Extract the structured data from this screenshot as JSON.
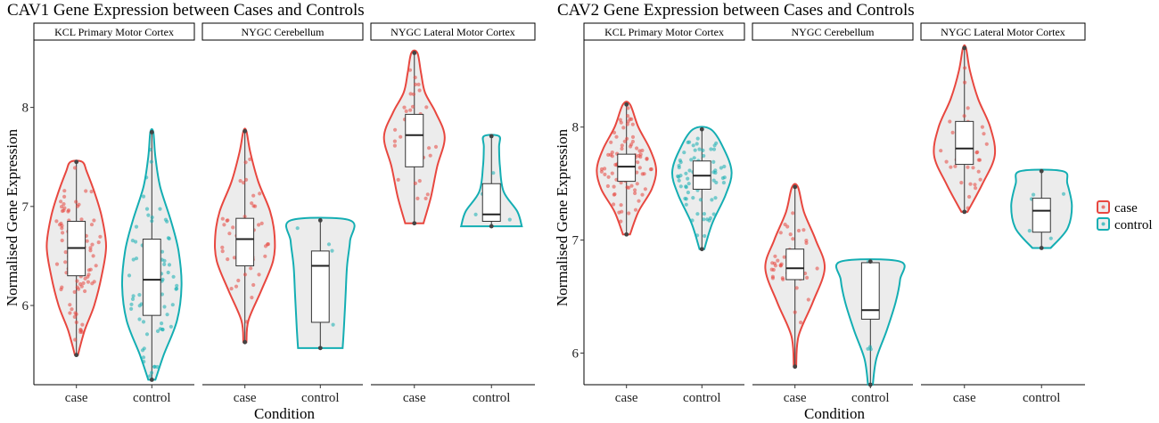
{
  "colors": {
    "case": "#e8473f",
    "control": "#14aeb3",
    "violin_fill": "#ececec",
    "strip_fill": "#ffffff"
  },
  "legend": {
    "entries": [
      {
        "group": "case",
        "label": "case"
      },
      {
        "group": "control",
        "label": "control"
      }
    ]
  },
  "chart_data": [
    {
      "type": "violin",
      "title": "CAV1 Gene Expression between Cases and Controls",
      "xlabel": "Condition",
      "ylabel": "Normalised Gene Expression",
      "ylim": [
        5.2,
        8.68
      ],
      "yticks": [
        6,
        7,
        8
      ],
      "categories": [
        "case",
        "control"
      ],
      "facets": [
        {
          "label": "KCL Primary Motor Cortex",
          "groups": [
            {
              "group": "case",
              "min": 5.5,
              "q1": 6.3,
              "median": 6.58,
              "q3": 6.85,
              "max": 7.45,
              "n": 90,
              "density": [
                [
                  5.5,
                  0.05
                ],
                [
                  5.75,
                  0.28
                ],
                [
                  6.0,
                  0.6
                ],
                [
                  6.3,
                  0.85
                ],
                [
                  6.6,
                  1.0
                ],
                [
                  6.9,
                  0.85
                ],
                [
                  7.15,
                  0.6
                ],
                [
                  7.35,
                  0.35
                ],
                [
                  7.45,
                  0.2
                ]
              ]
            },
            {
              "group": "control",
              "min": 5.25,
              "q1": 5.9,
              "median": 6.26,
              "q3": 6.67,
              "max": 7.75,
              "n": 70,
              "density": [
                [
                  5.25,
                  0.12
                ],
                [
                  5.5,
                  0.4
                ],
                [
                  5.85,
                  0.85
                ],
                [
                  6.2,
                  1.0
                ],
                [
                  6.55,
                  0.9
                ],
                [
                  6.85,
                  0.65
                ],
                [
                  7.2,
                  0.28
                ],
                [
                  7.5,
                  0.12
                ],
                [
                  7.75,
                  0.05
                ]
              ]
            }
          ]
        },
        {
          "label": "NYGC Cerebellum",
          "groups": [
            {
              "group": "case",
              "min": 5.63,
              "q1": 6.4,
              "median": 6.67,
              "q3": 6.88,
              "max": 7.76,
              "n": 45,
              "density": [
                [
                  5.63,
                  0.05
                ],
                [
                  5.85,
                  0.12
                ],
                [
                  6.15,
                  0.55
                ],
                [
                  6.45,
                  0.95
                ],
                [
                  6.7,
                  1.0
                ],
                [
                  6.95,
                  0.85
                ],
                [
                  7.25,
                  0.45
                ],
                [
                  7.55,
                  0.18
                ],
                [
                  7.76,
                  0.05
                ]
              ]
            },
            {
              "group": "control",
              "min": 5.57,
              "q1": 5.83,
              "median": 6.4,
              "q3": 6.55,
              "max": 6.86,
              "n": 5,
              "density": [
                [
                  5.57,
                  0.75
                ],
                [
                  5.8,
                  0.8
                ],
                [
                  6.1,
                  0.85
                ],
                [
                  6.4,
                  0.9
                ],
                [
                  6.65,
                  1.0
                ],
                [
                  6.86,
                  1.0
                ]
              ]
            }
          ]
        },
        {
          "label": "NYGC Lateral Motor Cortex",
          "groups": [
            {
              "group": "case",
              "min": 6.83,
              "q1": 7.4,
              "median": 7.72,
              "q3": 7.93,
              "max": 8.55,
              "n": 35,
              "density": [
                [
                  6.83,
                  0.3
                ],
                [
                  7.1,
                  0.55
                ],
                [
                  7.4,
                  0.75
                ],
                [
                  7.7,
                  1.0
                ],
                [
                  7.95,
                  0.7
                ],
                [
                  8.15,
                  0.35
                ],
                [
                  8.35,
                  0.22
                ],
                [
                  8.55,
                  0.1
                ]
              ]
            },
            {
              "group": "control",
              "min": 6.8,
              "q1": 6.85,
              "median": 6.92,
              "q3": 7.23,
              "max": 7.71,
              "n": 5,
              "density": [
                [
                  6.8,
                  1.0
                ],
                [
                  6.95,
                  0.85
                ],
                [
                  7.15,
                  0.4
                ],
                [
                  7.4,
                  0.28
                ],
                [
                  7.6,
                  0.25
                ],
                [
                  7.71,
                  0.25
                ]
              ]
            }
          ]
        }
      ]
    },
    {
      "type": "violin",
      "title": "CAV2 Gene Expression between Cases and Controls",
      "xlabel": "Condition",
      "ylabel": "Normalised Gene Expression",
      "ylim": [
        5.72,
        8.77
      ],
      "yticks": [
        6,
        7,
        8
      ],
      "categories": [
        "case",
        "control"
      ],
      "facets": [
        {
          "label": "KCL Primary Motor Cortex",
          "groups": [
            {
              "group": "case",
              "min": 7.05,
              "q1": 7.52,
              "median": 7.65,
              "q3": 7.76,
              "max": 8.2,
              "n": 90,
              "density": [
                [
                  7.05,
                  0.12
                ],
                [
                  7.25,
                  0.4
                ],
                [
                  7.45,
                  0.85
                ],
                [
                  7.62,
                  1.0
                ],
                [
                  7.8,
                  0.8
                ],
                [
                  8.0,
                  0.4
                ],
                [
                  8.2,
                  0.12
                ]
              ]
            },
            {
              "group": "control",
              "min": 6.92,
              "q1": 7.45,
              "median": 7.57,
              "q3": 7.7,
              "max": 7.98,
              "n": 70,
              "density": [
                [
                  6.92,
                  0.08
                ],
                [
                  7.15,
                  0.35
                ],
                [
                  7.4,
                  0.8
                ],
                [
                  7.6,
                  1.0
                ],
                [
                  7.8,
                  0.75
                ],
                [
                  7.98,
                  0.3
                ]
              ]
            }
          ]
        },
        {
          "label": "NYGC Cerebellum",
          "groups": [
            {
              "group": "case",
              "min": 5.88,
              "q1": 6.65,
              "median": 6.75,
              "q3": 6.92,
              "max": 7.47,
              "n": 45,
              "density": [
                [
                  5.88,
                  0.04
                ],
                [
                  6.15,
                  0.12
                ],
                [
                  6.45,
                  0.6
                ],
                [
                  6.75,
                  1.0
                ],
                [
                  7.0,
                  0.7
                ],
                [
                  7.25,
                  0.3
                ],
                [
                  7.47,
                  0.1
                ]
              ]
            },
            {
              "group": "control",
              "min": 5.72,
              "q1": 6.3,
              "median": 6.38,
              "q3": 6.8,
              "max": 6.81,
              "n": 5,
              "density": [
                [
                  5.72,
                  0.08
                ],
                [
                  5.95,
                  0.2
                ],
                [
                  6.2,
                  0.55
                ],
                [
                  6.45,
                  0.85
                ],
                [
                  6.65,
                  1.0
                ],
                [
                  6.81,
                  1.0
                ]
              ]
            }
          ]
        },
        {
          "label": "NYGC Lateral Motor Cortex",
          "groups": [
            {
              "group": "case",
              "min": 7.25,
              "q1": 7.67,
              "median": 7.81,
              "q3": 8.05,
              "max": 8.7,
              "n": 35,
              "density": [
                [
                  7.25,
                  0.1
                ],
                [
                  7.5,
                  0.6
                ],
                [
                  7.75,
                  1.0
                ],
                [
                  8.0,
                  0.85
                ],
                [
                  8.25,
                  0.45
                ],
                [
                  8.5,
                  0.18
                ],
                [
                  8.7,
                  0.05
                ]
              ]
            },
            {
              "group": "control",
              "min": 6.93,
              "q1": 7.07,
              "median": 7.26,
              "q3": 7.37,
              "max": 7.61,
              "n": 5,
              "density": [
                [
                  6.93,
                  0.3
                ],
                [
                  7.1,
                  0.85
                ],
                [
                  7.3,
                  1.0
                ],
                [
                  7.5,
                  0.85
                ],
                [
                  7.61,
                  0.7
                ]
              ]
            }
          ]
        }
      ]
    }
  ]
}
